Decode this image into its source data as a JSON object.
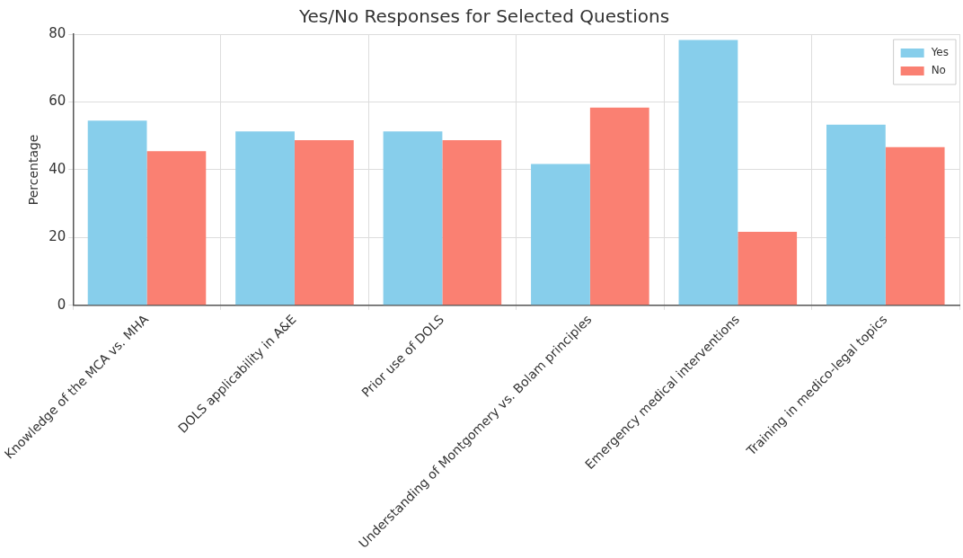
{
  "chart_data": {
    "type": "bar",
    "title": "Yes/No Responses for Selected Questions",
    "ylabel": "Percentage",
    "categories": [
      "Knowledge of the MCA vs. MHA",
      "DOLS applicability in A&E",
      "Prior use of DOLS",
      "Understanding of Montgomery vs. Bolam principles",
      "Emergency medical interventions",
      "Training in medico-legal topics"
    ],
    "series": [
      {
        "name": "Yes",
        "color": "#87ceeb",
        "values": [
          54.5,
          51.3,
          51.3,
          41.7,
          78.3,
          53.3
        ]
      },
      {
        "name": "No",
        "color": "#fa8072",
        "values": [
          45.5,
          48.7,
          48.7,
          58.3,
          21.7,
          46.7
        ]
      }
    ],
    "ylim": [
      0,
      80
    ],
    "yticks": [
      0,
      20,
      40,
      60,
      80
    ],
    "grid": true,
    "legend": "top right"
  }
}
